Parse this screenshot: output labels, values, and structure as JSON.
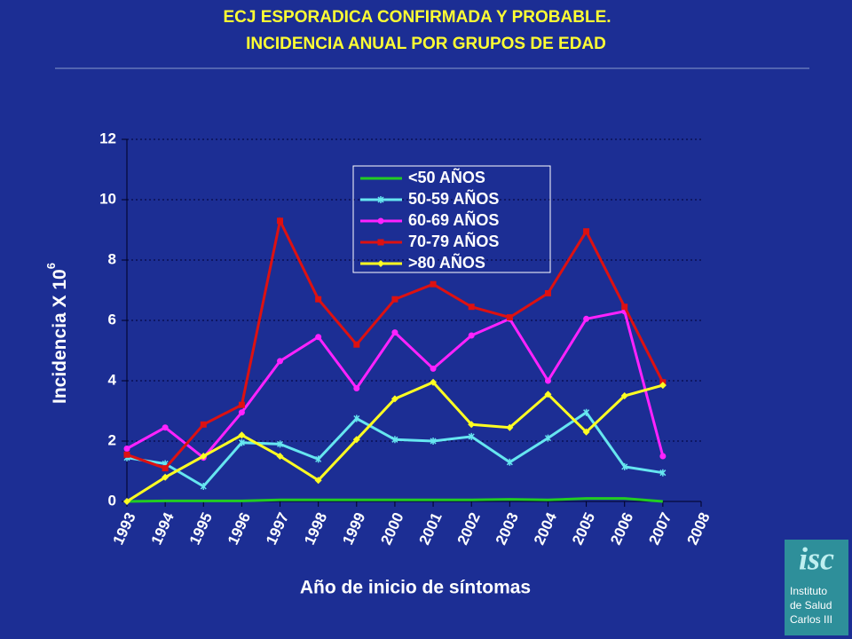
{
  "title": [
    "ECJ ESPORADICA CONFIRMADA Y PROBABLE.",
    "INCIDENCIA ANUAL POR GRUPOS DE EDAD"
  ],
  "chart_data": {
    "type": "line",
    "xlabel": "Año de inicio de síntomas",
    "ylabel": "Incidencia X 10",
    "ylabel_sup": "6",
    "x": [
      1993,
      1994,
      1995,
      1996,
      1997,
      1998,
      1999,
      2000,
      2001,
      2002,
      2003,
      2004,
      2005,
      2006,
      2007
    ],
    "xlim": [
      1993,
      2008
    ],
    "xticks": [
      1993,
      1994,
      1995,
      1996,
      1997,
      1998,
      1999,
      2000,
      2001,
      2002,
      2003,
      2004,
      2005,
      2006,
      2007,
      2008
    ],
    "ylim": [
      0,
      12
    ],
    "yticks": [
      0,
      2,
      4,
      6,
      8,
      10,
      12
    ],
    "grid": true,
    "series": [
      {
        "name": "<50 AÑOS",
        "color": "#22cc22",
        "marker": "none",
        "values": [
          0,
          0.02,
          0.02,
          0.02,
          0.05,
          0.05,
          0.05,
          0.05,
          0.05,
          0.05,
          0.07,
          0.05,
          0.1,
          0.1,
          0
        ]
      },
      {
        "name": "50-59 AÑOS",
        "color": "#66e6f0",
        "marker": "x",
        "values": [
          1.45,
          1.25,
          0.5,
          1.95,
          1.9,
          1.4,
          2.75,
          2.05,
          2.0,
          2.15,
          1.3,
          2.1,
          2.95,
          1.15,
          0.95
        ]
      },
      {
        "name": "60-69 AÑOS",
        "color": "#ff22ff",
        "marker": "circle",
        "values": [
          1.75,
          2.45,
          1.45,
          2.95,
          4.65,
          5.45,
          3.75,
          5.6,
          4.4,
          5.5,
          6.05,
          4.0,
          6.05,
          6.3,
          1.5
        ]
      },
      {
        "name": "70-79 AÑOS",
        "color": "#dd1111",
        "marker": "square",
        "values": [
          1.55,
          1.1,
          2.55,
          3.2,
          9.3,
          6.7,
          5.2,
          6.7,
          7.2,
          6.45,
          6.1,
          6.9,
          8.95,
          6.45,
          3.95
        ]
      },
      {
        "name": ">80 AÑOS",
        "color": "#ffff22",
        "marker": "diamond",
        "values": [
          0,
          0.8,
          1.5,
          2.2,
          1.5,
          0.7,
          2.05,
          3.4,
          3.95,
          2.55,
          2.45,
          3.55,
          2.3,
          3.5,
          3.85
        ]
      }
    ]
  },
  "logo": {
    "mark": "isc",
    "lines": [
      "Instituto",
      "de Salud",
      "Carlos III"
    ]
  }
}
